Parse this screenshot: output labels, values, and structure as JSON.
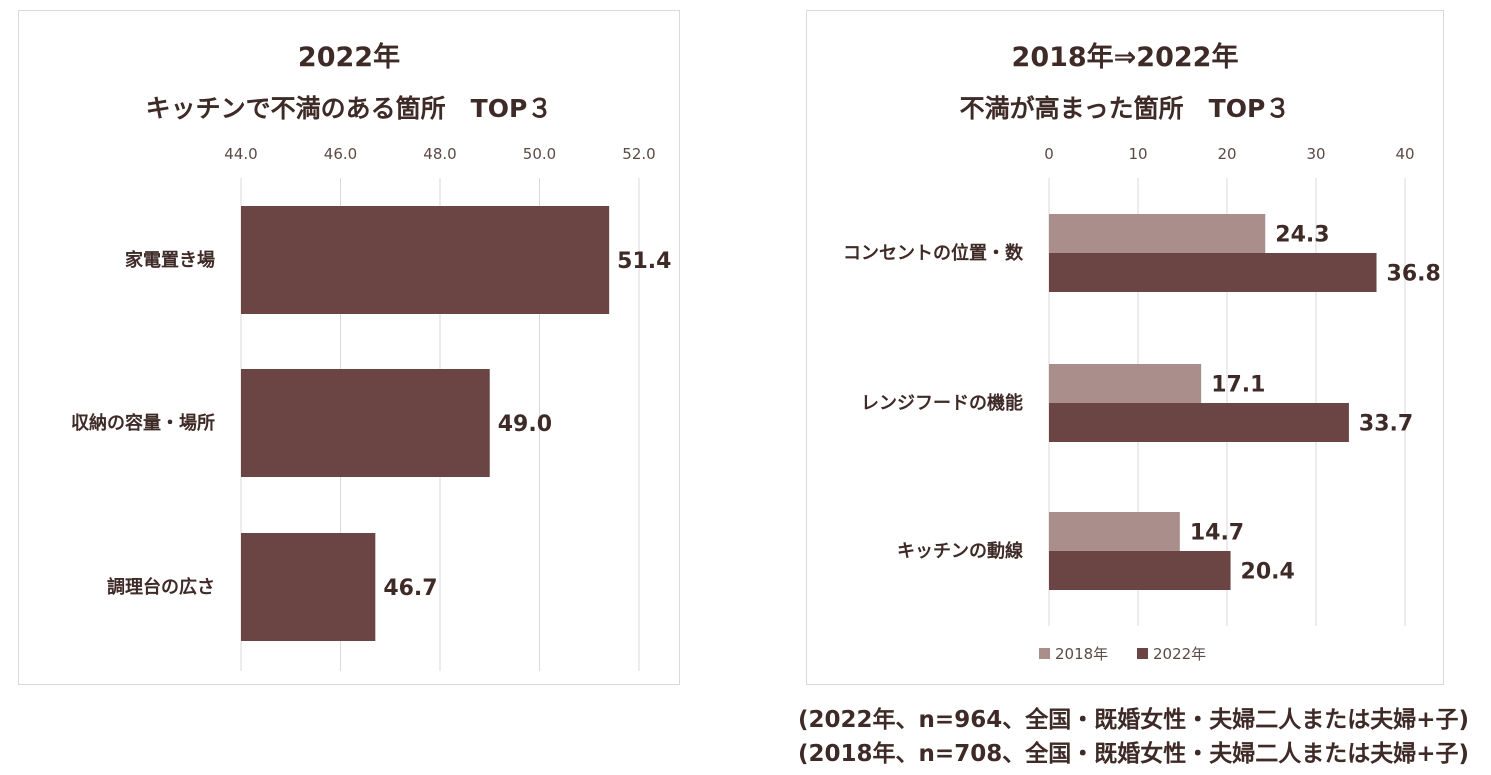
{
  "colors": {
    "bar_2022": "#6b4543",
    "bar_2018": "#a98e8c",
    "grid": "#d9d9d9",
    "text": "#3e2a26"
  },
  "chart_data": [
    {
      "type": "bar",
      "orientation": "horizontal",
      "title_line1": "2022年",
      "title_line2": "キッチンで不満のある箇所　TOP３",
      "categories": [
        "家電置き場",
        "収納の容量・場所",
        "調理台の広さ"
      ],
      "values": [
        51.4,
        49.0,
        46.7
      ],
      "value_labels": [
        "51.4",
        "49.0",
        "46.7"
      ],
      "xlim": [
        44.0,
        52.0
      ],
      "ticks": [
        44.0,
        46.0,
        48.0,
        50.0,
        52.0
      ],
      "tick_labels": [
        "44.0",
        "46.0",
        "48.0",
        "50.0",
        "52.0"
      ],
      "axis_position": "top",
      "grid": true,
      "legend": null
    },
    {
      "type": "bar",
      "orientation": "horizontal",
      "title_line1": "2018年⇒2022年",
      "title_line2": "不満が高まった箇所　TOP３",
      "categories": [
        "コンセントの位置・数",
        "レンジフードの機能",
        "キッチンの動線"
      ],
      "series": [
        {
          "name": "2018年",
          "values": [
            24.3,
            17.1,
            14.7
          ],
          "value_labels": [
            "24.3",
            "17.1",
            "14.7"
          ]
        },
        {
          "name": "2022年",
          "values": [
            36.8,
            33.7,
            20.4
          ],
          "value_labels": [
            "36.8",
            "33.7",
            "20.4"
          ]
        }
      ],
      "xlim": [
        0,
        40
      ],
      "ticks": [
        0,
        10,
        20,
        30,
        40
      ],
      "tick_labels": [
        "0",
        "10",
        "20",
        "30",
        "40"
      ],
      "axis_position": "top",
      "grid": true,
      "legend": "bottom"
    }
  ],
  "footnotes": [
    "(2022年、n=964、全国・既婚女性・夫婦二人または夫婦+子)",
    "(2018年、n=708、全国・既婚女性・夫婦二人または夫婦+子)"
  ]
}
